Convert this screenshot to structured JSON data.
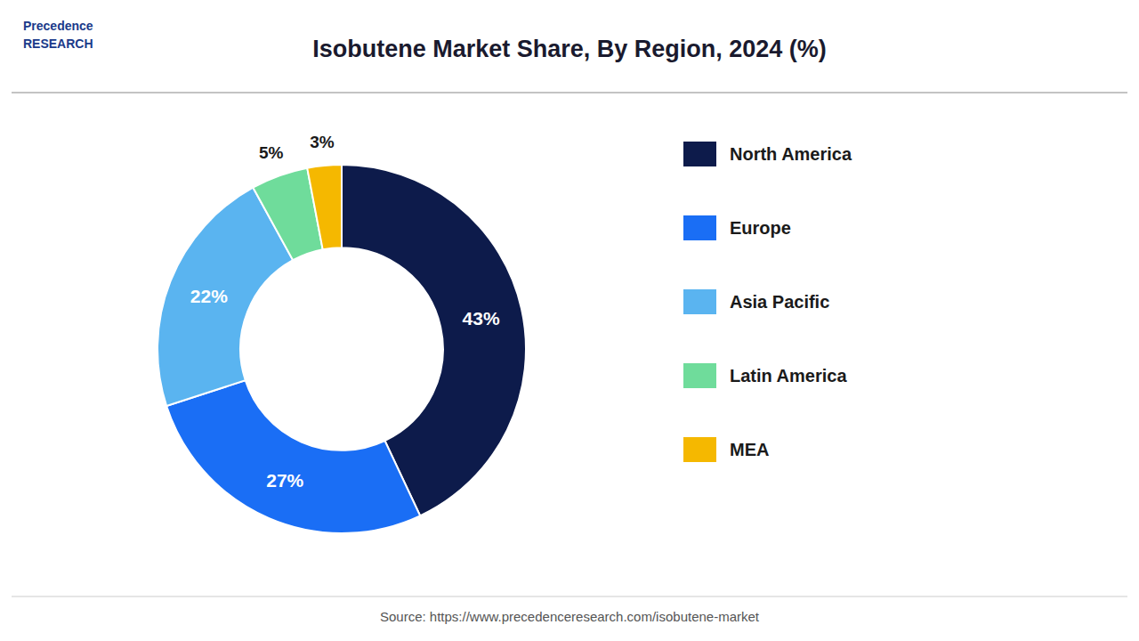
{
  "chart_data": {
    "type": "donut",
    "title": "Isobutene Market Share, By Region, 2024 (%)",
    "categories": [
      "North America",
      "Europe",
      "Asia Pacific",
      "Latin America",
      "MEA"
    ],
    "values": [
      43,
      27,
      22,
      5,
      3
    ],
    "value_labels": [
      "43%",
      "27%",
      "22%",
      "5%",
      "3%"
    ],
    "colors": [
      "#0d1b4b",
      "#1a6ef5",
      "#5ab4f0",
      "#6fdc9b",
      "#f5b800"
    ],
    "annotations": [
      "Precedence\nRESEARCH",
      "Source: https://www.precedenceresearch.com/isobutene-market"
    ],
    "data_labels": true,
    "legend": "right"
  }
}
